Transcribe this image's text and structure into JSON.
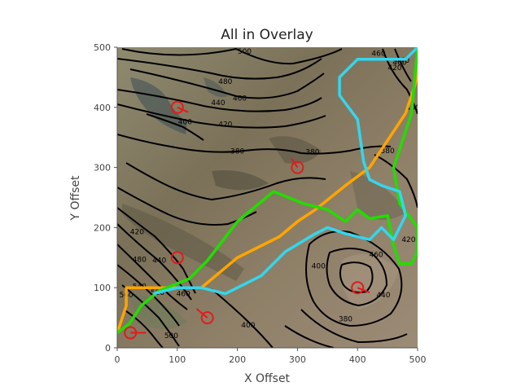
{
  "chart_data": {
    "type": "map-overlay",
    "title": "All in Overlay",
    "xlabel": "X Offset",
    "ylabel": "Y Offset",
    "xlim": [
      0,
      500
    ],
    "ylim": [
      0,
      500
    ],
    "xticks": [
      0,
      100,
      200,
      300,
      400,
      500
    ],
    "yticks": [
      0,
      100,
      200,
      300,
      400,
      500
    ],
    "background": "satellite imagery (terrain)",
    "contour_color": "#000000",
    "contour_labels": [
      {
        "text": "500",
        "x": 212,
        "y": 493
      },
      {
        "text": "480",
        "x": 180,
        "y": 443
      },
      {
        "text": "460",
        "x": 204,
        "y": 415
      },
      {
        "text": "440",
        "x": 168,
        "y": 408
      },
      {
        "text": "420",
        "x": 180,
        "y": 372
      },
      {
        "text": "400",
        "x": 113,
        "y": 376
      },
      {
        "text": "380",
        "x": 200,
        "y": 327
      },
      {
        "text": "380",
        "x": 325,
        "y": 326
      },
      {
        "text": "380",
        "x": 450,
        "y": 328
      },
      {
        "text": "460",
        "x": 435,
        "y": 490
      },
      {
        "text": "460",
        "x": 470,
        "y": 475
      },
      {
        "text": "420",
        "x": 462,
        "y": 466
      },
      {
        "text": "440",
        "x": 475,
        "y": 478
      },
      {
        "text": "400",
        "x": 492,
        "y": 400
      },
      {
        "text": "420",
        "x": 485,
        "y": 180
      },
      {
        "text": "460",
        "x": 431,
        "y": 155
      },
      {
        "text": "440",
        "x": 443,
        "y": 88
      },
      {
        "text": "400",
        "x": 335,
        "y": 136
      },
      {
        "text": "380",
        "x": 380,
        "y": 48
      },
      {
        "text": "420",
        "x": 33,
        "y": 193
      },
      {
        "text": "480",
        "x": 37,
        "y": 147
      },
      {
        "text": "440",
        "x": 70,
        "y": 146
      },
      {
        "text": "540",
        "x": 37,
        "y": 102
      },
      {
        "text": "520",
        "x": 67,
        "y": 92
      },
      {
        "text": "460",
        "x": 110,
        "y": 90
      },
      {
        "text": "560",
        "x": 15,
        "y": 88
      },
      {
        "text": "500",
        "x": 90,
        "y": 20
      },
      {
        "text": "400",
        "x": 218,
        "y": 38
      }
    ],
    "series": [
      {
        "name": "orange path",
        "color": "#FFA500",
        "points": [
          [
            0,
            25
          ],
          [
            15,
            70
          ],
          [
            15,
            100
          ],
          [
            100,
            100
          ],
          [
            140,
            100
          ],
          [
            200,
            150
          ],
          [
            270,
            185
          ],
          [
            300,
            210
          ],
          [
            330,
            230
          ],
          [
            380,
            270
          ],
          [
            420,
            300
          ],
          [
            480,
            390
          ],
          [
            500,
            450
          ],
          [
            500,
            500
          ]
        ]
      },
      {
        "name": "green region",
        "color": "#22DD00",
        "points": [
          [
            0,
            25
          ],
          [
            20,
            40
          ],
          [
            40,
            70
          ],
          [
            70,
            95
          ],
          [
            120,
            115
          ],
          [
            150,
            145
          ],
          [
            200,
            210
          ],
          [
            260,
            260
          ],
          [
            310,
            240
          ],
          [
            350,
            230
          ],
          [
            380,
            210
          ],
          [
            400,
            230
          ],
          [
            420,
            215
          ],
          [
            450,
            220
          ],
          [
            460,
            170
          ],
          [
            470,
            140
          ],
          [
            490,
            140
          ],
          [
            500,
            160
          ],
          [
            500,
            200
          ],
          [
            470,
            240
          ],
          [
            460,
            300
          ],
          [
            490,
            390
          ],
          [
            500,
            500
          ]
        ]
      },
      {
        "name": "cyan path",
        "color": "#33D6EE",
        "points": [
          [
            60,
            90
          ],
          [
            100,
            100
          ],
          [
            140,
            100
          ],
          [
            180,
            90
          ],
          [
            240,
            120
          ],
          [
            280,
            160
          ],
          [
            330,
            190
          ],
          [
            350,
            200
          ],
          [
            380,
            190
          ],
          [
            420,
            180
          ],
          [
            440,
            200
          ],
          [
            460,
            180
          ],
          [
            480,
            220
          ],
          [
            470,
            260
          ],
          [
            440,
            270
          ],
          [
            420,
            280
          ],
          [
            410,
            310
          ],
          [
            400,
            380
          ],
          [
            370,
            420
          ],
          [
            370,
            450
          ],
          [
            400,
            480
          ],
          [
            480,
            480
          ],
          [
            500,
            500
          ]
        ]
      }
    ],
    "markers": [
      {
        "label": "marker",
        "x": 100,
        "y": 400,
        "dir_x": 118,
        "dir_y": 392
      },
      {
        "label": "marker",
        "x": 300,
        "y": 300,
        "dir_x": 290,
        "dir_y": 315
      },
      {
        "label": "marker",
        "x": 100,
        "y": 150,
        "dir_x": 100,
        "dir_y": 150
      },
      {
        "label": "marker",
        "x": 150,
        "y": 50,
        "dir_x": 132,
        "dir_y": 65
      },
      {
        "label": "marker",
        "x": 400,
        "y": 100,
        "dir_x": 420,
        "dir_y": 92
      },
      {
        "label": "marker",
        "x": 22,
        "y": 25,
        "dir_x": 48,
        "dir_y": 25
      }
    ],
    "marker_color": "#E41A1C"
  }
}
